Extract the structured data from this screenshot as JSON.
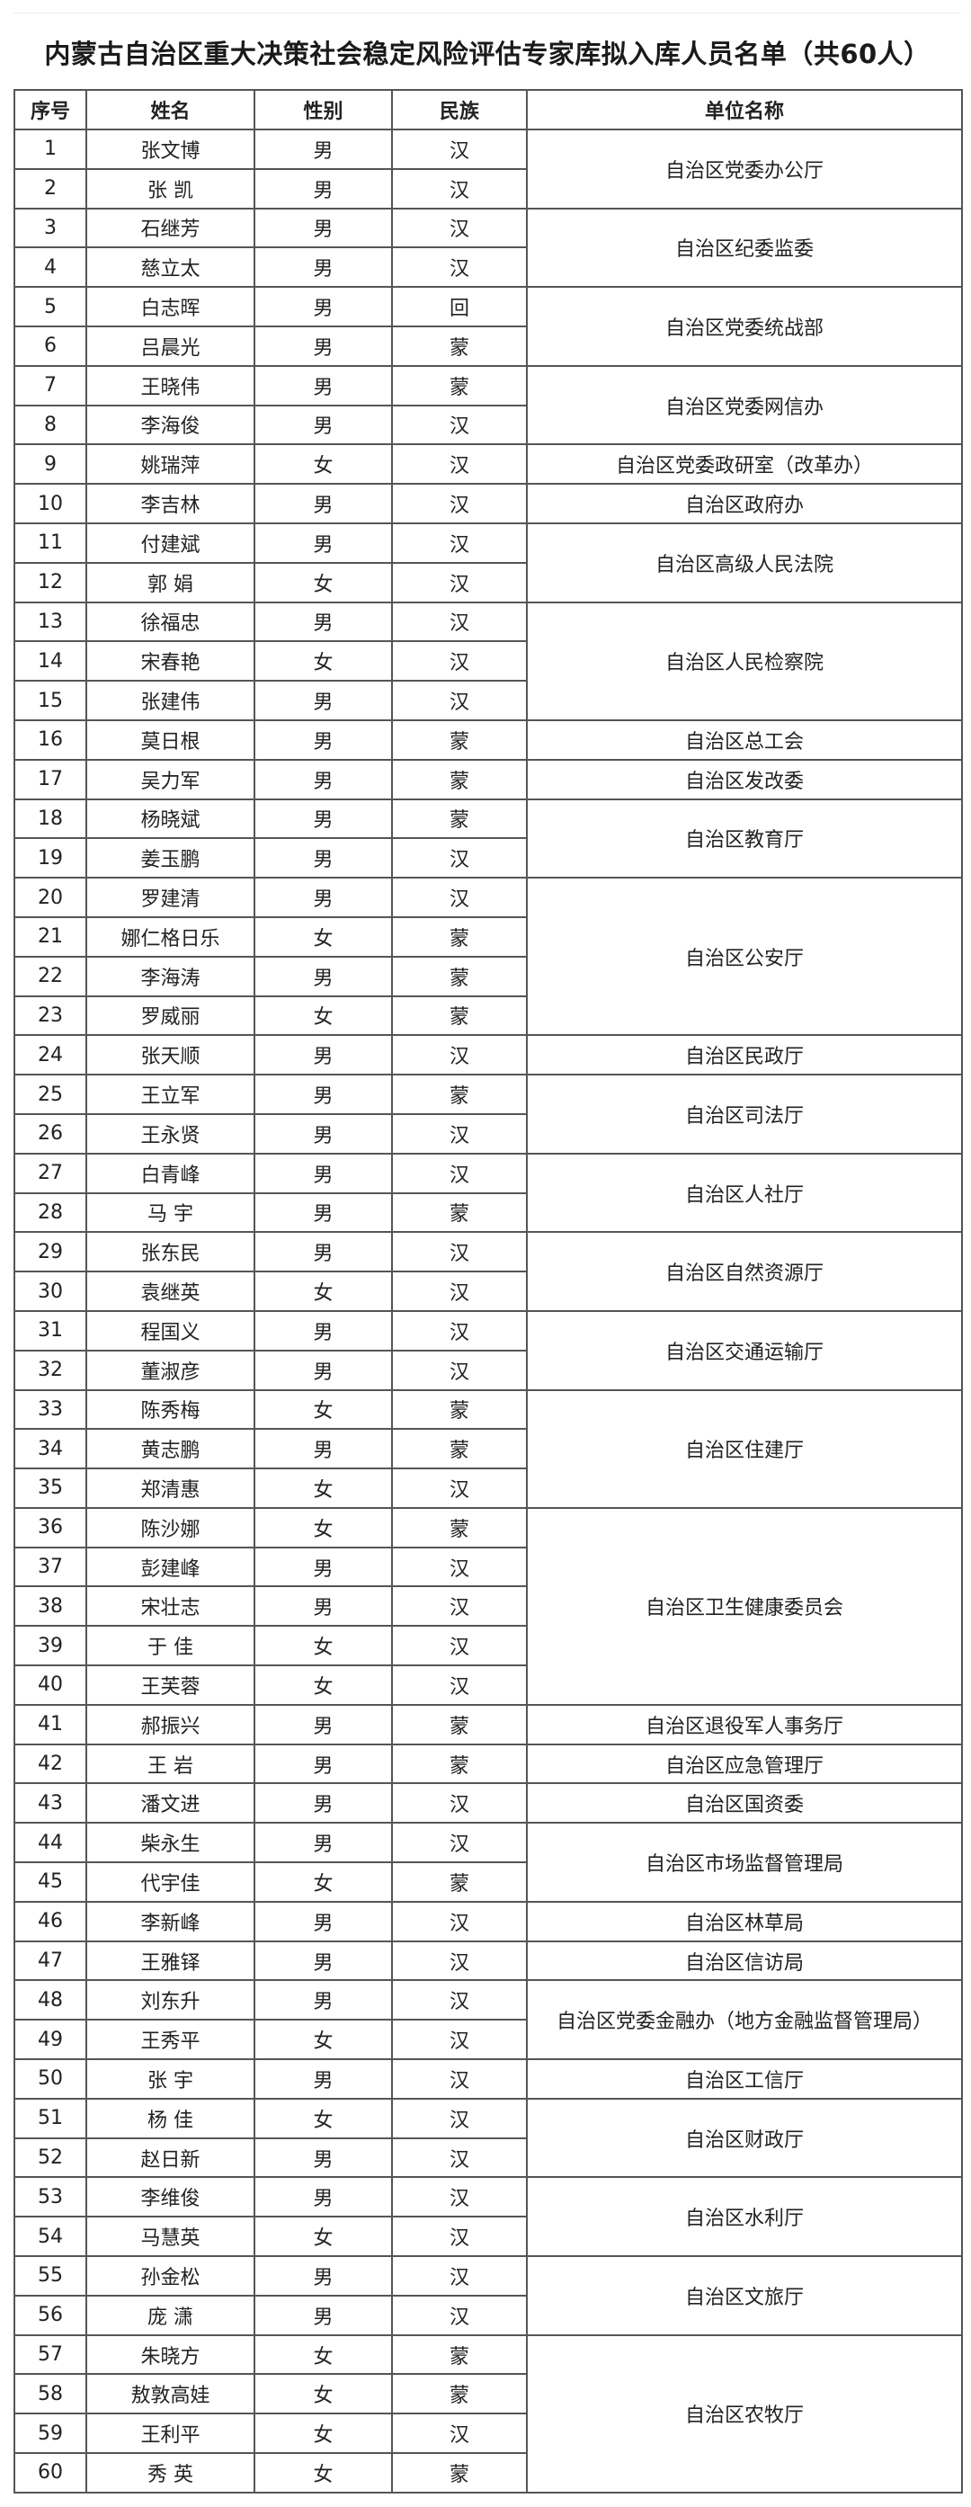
{
  "title": "内蒙古自治区重大决策社会稳定风险评估专家库拟入库人员名单（共60人）",
  "headers": [
    "序号",
    "姓名",
    "性别",
    "民族",
    "单位名称"
  ],
  "rows": [
    [
      "1",
      "张文博",
      "男",
      "汉"
    ],
    [
      "2",
      "张 凯",
      "男",
      "汉"
    ],
    [
      "3",
      "石继芳",
      "男",
      "汉"
    ],
    [
      "4",
      "慈立太",
      "男",
      "汉"
    ],
    [
      "5",
      "白志晖",
      "男",
      "回"
    ],
    [
      "6",
      "吕晨光",
      "男",
      "蒙"
    ],
    [
      "7",
      "王晓伟",
      "男",
      "蒙"
    ],
    [
      "8",
      "李海俊",
      "男",
      "汉"
    ],
    [
      "9",
      "姚瑞萍",
      "女",
      "汉"
    ],
    [
      "10",
      "李吉林",
      "男",
      "汉"
    ],
    [
      "11",
      "付建斌",
      "男",
      "汉"
    ],
    [
      "12",
      "郭 娟",
      "女",
      "汉"
    ],
    [
      "13",
      "徐福忠",
      "男",
      "汉"
    ],
    [
      "14",
      "宋春艳",
      "女",
      "汉"
    ],
    [
      "15",
      "张建伟",
      "男",
      "汉"
    ],
    [
      "16",
      "莫日根",
      "男",
      "蒙"
    ],
    [
      "17",
      "吴力军",
      "男",
      "蒙"
    ],
    [
      "18",
      "杨晓斌",
      "男",
      "蒙"
    ],
    [
      "19",
      "姜玉鹏",
      "男",
      "汉"
    ],
    [
      "20",
      "罗建清",
      "男",
      "汉"
    ],
    [
      "21",
      "娜仁格日乐",
      "女",
      "蒙"
    ],
    [
      "22",
      "李海涛",
      "男",
      "蒙"
    ],
    [
      "23",
      "罗威丽",
      "女",
      "蒙"
    ],
    [
      "24",
      "张天顺",
      "男",
      "汉"
    ],
    [
      "25",
      "王立军",
      "男",
      "蒙"
    ],
    [
      "26",
      "王永贤",
      "男",
      "汉"
    ],
    [
      "27",
      "白青峰",
      "男",
      "汉"
    ],
    [
      "28",
      "马 宇",
      "男",
      "蒙"
    ],
    [
      "29",
      "张东民",
      "男",
      "汉"
    ],
    [
      "30",
      "袁继英",
      "女",
      "汉"
    ],
    [
      "31",
      "程国义",
      "男",
      "汉"
    ],
    [
      "32",
      "董淑彦",
      "男",
      "汉"
    ],
    [
      "33",
      "陈秀梅",
      "女",
      "蒙"
    ],
    [
      "34",
      "黄志鹏",
      "男",
      "蒙"
    ],
    [
      "35",
      "郑清惠",
      "女",
      "汉"
    ],
    [
      "36",
      "陈沙娜",
      "女",
      "蒙"
    ],
    [
      "37",
      "彭建峰",
      "男",
      "汉"
    ],
    [
      "38",
      "宋壮志",
      "男",
      "汉"
    ],
    [
      "39",
      "于 佳",
      "女",
      "汉"
    ],
    [
      "40",
      "王芙蓉",
      "女",
      "汉"
    ],
    [
      "41",
      "郝振兴",
      "男",
      "蒙"
    ],
    [
      "42",
      "王 岩",
      "男",
      "蒙"
    ],
    [
      "43",
      "潘文进",
      "男",
      "汉"
    ],
    [
      "44",
      "柴永生",
      "男",
      "汉"
    ],
    [
      "45",
      "代宇佳",
      "女",
      "蒙"
    ],
    [
      "46",
      "李新峰",
      "男",
      "汉"
    ],
    [
      "47",
      "王雅铎",
      "男",
      "汉"
    ],
    [
      "48",
      "刘东升",
      "男",
      "汉"
    ],
    [
      "49",
      "王秀平",
      "女",
      "汉"
    ],
    [
      "50",
      "张 宇",
      "男",
      "汉"
    ],
    [
      "51",
      "杨 佳",
      "女",
      "汉"
    ],
    [
      "52",
      "赵日新",
      "男",
      "汉"
    ],
    [
      "53",
      "李维俊",
      "男",
      "汉"
    ],
    [
      "54",
      "马慧英",
      "女",
      "汉"
    ],
    [
      "55",
      "孙金松",
      "男",
      "汉"
    ],
    [
      "56",
      "庞 潇",
      "男",
      "汉"
    ],
    [
      "57",
      "朱晓方",
      "女",
      "蒙"
    ],
    [
      "58",
      "敖敦高娃",
      "女",
      "蒙"
    ],
    [
      "59",
      "王利平",
      "女",
      "汉"
    ],
    [
      "60",
      "秀 英",
      "女",
      "蒙"
    ]
  ],
  "units": [
    {
      "name": "自治区党委办公厅",
      "span": 2
    },
    {
      "name": "自治区纪委监委",
      "span": 2
    },
    {
      "name": "自治区党委统战部",
      "span": 2
    },
    {
      "name": "自治区党委网信办",
      "span": 2
    },
    {
      "name": "自治区党委政研室（改革办）",
      "span": 1
    },
    {
      "name": "自治区政府办",
      "span": 1
    },
    {
      "name": "自治区高级人民法院",
      "span": 2
    },
    {
      "name": "自治区人民检察院",
      "span": 3
    },
    {
      "name": "自治区总工会",
      "span": 1
    },
    {
      "name": "自治区发改委",
      "span": 1
    },
    {
      "name": "自治区教育厅",
      "span": 2
    },
    {
      "name": "自治区公安厅",
      "span": 4
    },
    {
      "name": "自治区民政厅",
      "span": 1
    },
    {
      "name": "自治区司法厅",
      "span": 2
    },
    {
      "name": "自治区人社厅",
      "span": 2
    },
    {
      "name": "自治区自然资源厅",
      "span": 2
    },
    {
      "name": "自治区交通运输厅",
      "span": 2
    },
    {
      "name": "自治区住建厅",
      "span": 3
    },
    {
      "name": "自治区卫生健康委员会",
      "span": 5
    },
    {
      "name": "自治区退役军人事务厅",
      "span": 1
    },
    {
      "name": "自治区应急管理厅",
      "span": 1
    },
    {
      "name": "自治区国资委",
      "span": 1
    },
    {
      "name": "自治区市场监督管理局",
      "span": 2
    },
    {
      "name": "自治区林草局",
      "span": 1
    },
    {
      "name": "自治区信访局",
      "span": 1
    },
    {
      "name": "自治区党委金融办（地方金融监督管理局）",
      "span": 2
    },
    {
      "name": "自治区工信厅",
      "span": 1
    },
    {
      "name": "自治区财政厅",
      "span": 2
    },
    {
      "name": "自治区水利厅",
      "span": 2
    },
    {
      "name": "自治区文旅厅",
      "span": 2
    },
    {
      "name": "自治区农牧厅",
      "span": 4
    }
  ]
}
